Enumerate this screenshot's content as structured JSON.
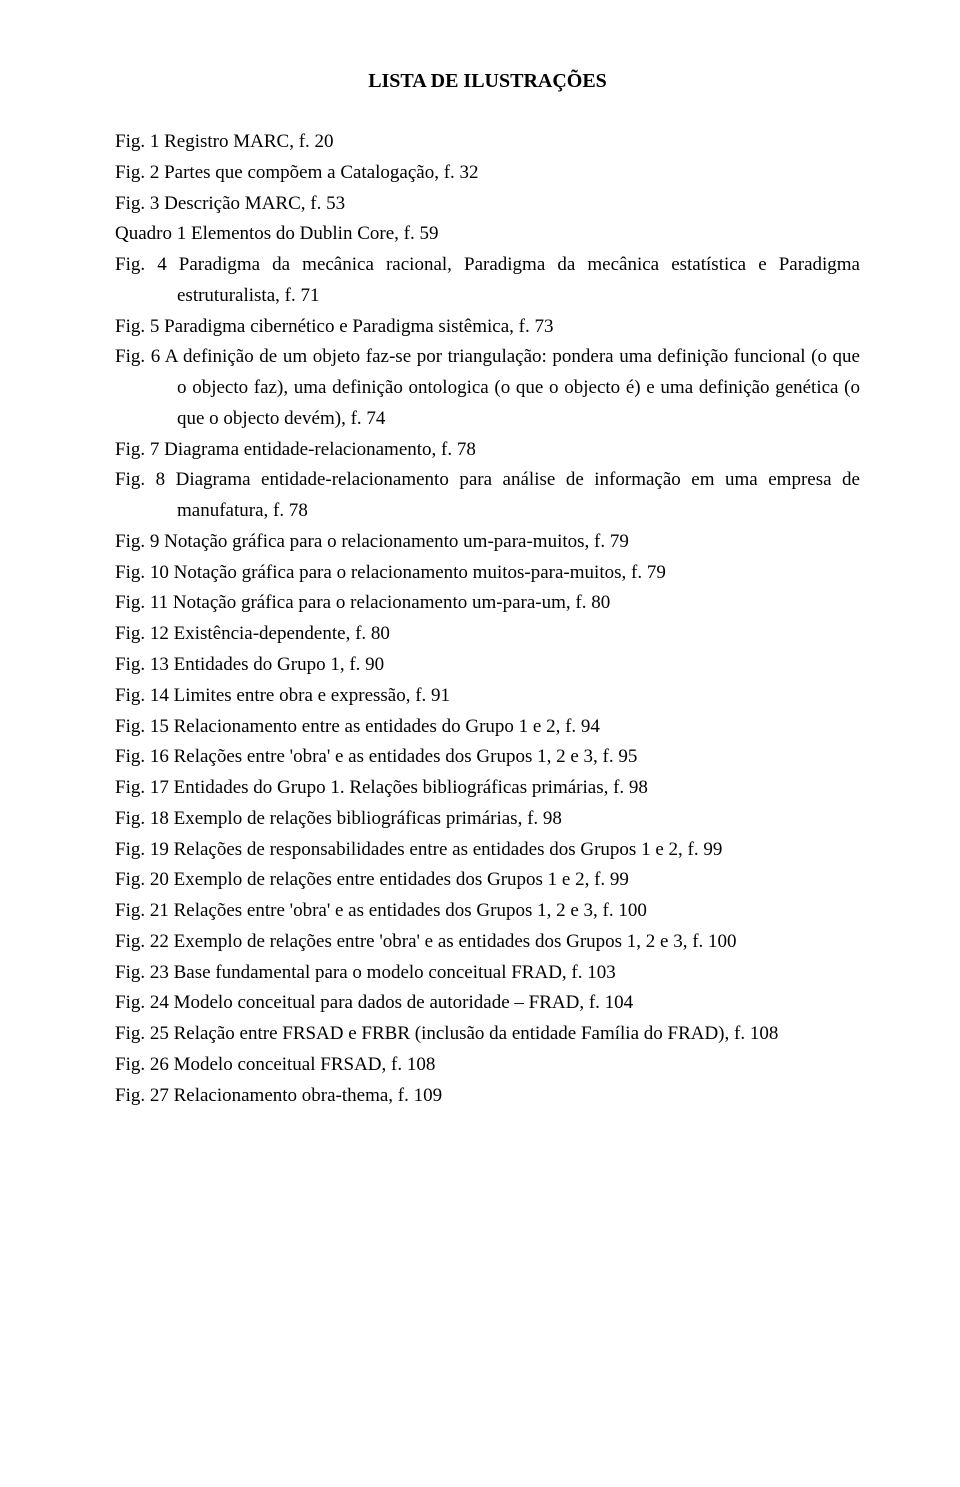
{
  "title": "LISTA DE ILUSTRAÇÕES",
  "entries": [
    {
      "text": "Fig. 1   Registro MARC, f. 20",
      "hang": false
    },
    {
      "text": "Fig. 2   Partes que compõem a Catalogação, f. 32",
      "hang": false
    },
    {
      "text": "Fig. 3   Descrição MARC, f. 53",
      "hang": false
    },
    {
      "text": "Quadro 1   Elementos do Dublin Core, f. 59",
      "hang": false
    },
    {
      "text": "Fig. 4   Paradigma da mecânica racional, Paradigma da mecânica estatística e Paradigma estruturalista, f. 71",
      "hang": true
    },
    {
      "text": "Fig. 5   Paradigma cibernético e Paradigma sistêmica, f. 73",
      "hang": false
    },
    {
      "text": "Fig. 6   A definição de um objeto faz-se por triangulação: pondera uma definição funcional (o que o objecto faz), uma definição ontologica (o que o objecto é) e uma definição genética (o que o objecto devém), f. 74",
      "hang": true
    },
    {
      "text": "Fig. 7   Diagrama entidade-relacionamento, f. 78",
      "hang": false
    },
    {
      "text": "Fig. 8   Diagrama entidade-relacionamento para análise de informação em uma empresa de manufatura, f. 78",
      "hang": true
    },
    {
      "text": "Fig. 9    Notação gráfica para o relacionamento um-para-muitos, f. 79",
      "hang": false
    },
    {
      "text": "Fig. 10  Notação gráfica para o relacionamento muitos-para-muitos, f. 79",
      "hang": false
    },
    {
      "text": "Fig. 11  Notação gráfica para o relacionamento um-para-um, f. 80",
      "hang": false
    },
    {
      "text": "Fig. 12  Existência-dependente, f. 80",
      "hang": false
    },
    {
      "text": "Fig. 13  Entidades do Grupo 1, f. 90",
      "hang": false
    },
    {
      "text": "Fig. 14  Limites entre obra e expressão, f. 91",
      "hang": false
    },
    {
      "text": "Fig. 15  Relacionamento entre as entidades do Grupo 1 e 2, f. 94",
      "hang": false
    },
    {
      "text": "Fig. 16  Relações entre 'obra' e as entidades dos Grupos 1, 2 e 3, f. 95",
      "hang": false
    },
    {
      "text": "Fig. 17  Entidades do Grupo 1. Relações bibliográficas primárias, f. 98",
      "hang": false
    },
    {
      "text": "Fig. 18  Exemplo de relações bibliográficas primárias, f. 98",
      "hang": false
    },
    {
      "text": "Fig. 19  Relações de responsabilidades entre as entidades dos Grupos 1 e 2, f. 99",
      "hang": false
    },
    {
      "text": "Fig. 20  Exemplo de relações entre entidades dos Grupos 1 e 2, f. 99",
      "hang": false
    },
    {
      "text": "Fig. 21  Relações entre 'obra' e as entidades dos Grupos 1, 2 e 3, f. 100",
      "hang": false
    },
    {
      "text": "Fig. 22  Exemplo de relações entre 'obra' e as entidades dos Grupos 1, 2 e 3, f. 100",
      "hang": false
    },
    {
      "text": "Fig. 23  Base fundamental para o modelo conceitual FRAD, f. 103",
      "hang": false
    },
    {
      "text": "Fig. 24  Modelo conceitual para dados de autoridade – FRAD, f. 104",
      "hang": false
    },
    {
      "text": "Fig. 25  Relação entre FRSAD e FRBR (inclusão da entidade Família do FRAD), f. 108",
      "hang": false
    },
    {
      "text": "Fig. 26  Modelo conceitual FRSAD, f. 108",
      "hang": false
    },
    {
      "text": "Fig. 27  Relacionamento obra-thema, f. 109",
      "hang": false
    }
  ]
}
